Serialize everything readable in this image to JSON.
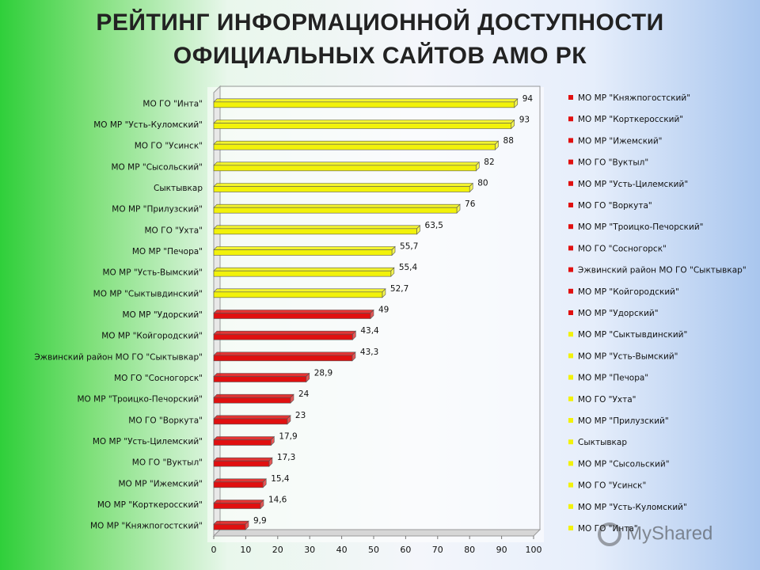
{
  "title": {
    "line1": "РЕЙТИНГ ИНФОРМАЦИОННОЙ ДОСТУПНОСТИ",
    "line2": "ОФИЦИАЛЬНЫХ САЙТОВ АМО РК"
  },
  "watermark": "MyShared",
  "colors": {
    "high": "#f2f20a",
    "low": "#e01010"
  },
  "chart_data": {
    "type": "bar",
    "orientation": "horizontal",
    "categories": [
      "МО ГО \"Инта\"",
      "МО МР \"Усть-Куломский\"",
      "МО ГО \"Усинск\"",
      "МО МР \"Сысольский\"",
      "Сыктывкар",
      "МО МР \"Прилузский\"",
      "МО ГО \"Ухта\"",
      "МО МР \"Печора\"",
      "МО МР \"Усть-Вымский\"",
      "МО МР \"Сыктывдинский\"",
      "МО МР \"Удорский\"",
      "МО МР \"Койгородский\"",
      "Эжвинский район МО ГО \"Сыктывкар\"",
      "МО ГО \"Сосногорск\"",
      "МО МР \"Троицко-Печорский\"",
      "МО ГО \"Воркута\"",
      "МО МР \"Усть-Цилемский\"",
      "МО ГО \"Вуктыл\"",
      "МО МР \"Ижемский\"",
      "МО МР \"Корткеросский\"",
      "МО МР \"Княжпогостский\""
    ],
    "values": [
      94,
      93,
      88,
      82,
      80,
      76,
      63.5,
      55.7,
      55.4,
      52.7,
      49,
      43.4,
      43.3,
      28.9,
      24,
      23,
      17.9,
      17.3,
      15.4,
      14.6,
      9.9
    ],
    "value_labels": [
      "94",
      "93",
      "88",
      "82",
      "80",
      "76",
      "63,5",
      "55,7",
      "55,4",
      "52,7",
      "49",
      "43,4",
      "43,3",
      "28,9",
      "24",
      "23",
      "17,9",
      "17,3",
      "15,4",
      "14,6",
      "9,9"
    ],
    "bar_colors": [
      "#f2f20a",
      "#f2f20a",
      "#f2f20a",
      "#f2f20a",
      "#f2f20a",
      "#f2f20a",
      "#f2f20a",
      "#f2f20a",
      "#f2f20a",
      "#f2f20a",
      "#e01010",
      "#e01010",
      "#e01010",
      "#e01010",
      "#e01010",
      "#e01010",
      "#e01010",
      "#e01010",
      "#e01010",
      "#e01010",
      "#e01010"
    ],
    "xlim": [
      0,
      100
    ],
    "xticks": [
      "0",
      "10",
      "20",
      "30",
      "40",
      "50",
      "60",
      "70",
      "80",
      "90",
      "100"
    ],
    "legend": [
      {
        "label": "МО МР \"Княжпогостский\"",
        "color": "#e01010"
      },
      {
        "label": "МО МР \"Корткеросский\"",
        "color": "#e01010"
      },
      {
        "label": "МО МР \"Ижемский\"",
        "color": "#e01010"
      },
      {
        "label": "МО ГО \"Вуктыл\"",
        "color": "#e01010"
      },
      {
        "label": "МО МР \"Усть-Цилемский\"",
        "color": "#e01010"
      },
      {
        "label": "МО ГО \"Воркута\"",
        "color": "#e01010"
      },
      {
        "label": "МО МР \"Троицко-Печорский\"",
        "color": "#e01010"
      },
      {
        "label": "МО ГО \"Сосногорск\"",
        "color": "#e01010"
      },
      {
        "label": "Эжвинский район МО ГО \"Сыктывкар\"",
        "color": "#e01010"
      },
      {
        "label": "МО МР \"Койгородский\"",
        "color": "#e01010"
      },
      {
        "label": "МО МР \"Удорский\"",
        "color": "#e01010"
      },
      {
        "label": "МО МР \"Сыктывдинский\"",
        "color": "#f2f20a"
      },
      {
        "label": "МО МР \"Усть-Вымский\"",
        "color": "#f2f20a"
      },
      {
        "label": "МО МР \"Печора\"",
        "color": "#f2f20a"
      },
      {
        "label": "МО ГО \"Ухта\"",
        "color": "#f2f20a"
      },
      {
        "label": "МО МР \"Прилузский\"",
        "color": "#f2f20a"
      },
      {
        "label": "Сыктывкар",
        "color": "#f2f20a"
      },
      {
        "label": "МО МР \"Сысольский\"",
        "color": "#f2f20a"
      },
      {
        "label": "МО ГО \"Усинск\"",
        "color": "#f2f20a"
      },
      {
        "label": "МО МР \"Усть-Куломский\"",
        "color": "#f2f20a"
      },
      {
        "label": "МО ГО \"Инта\"",
        "color": "#f2f20a"
      }
    ],
    "legend_position": "right",
    "grid": false
  }
}
